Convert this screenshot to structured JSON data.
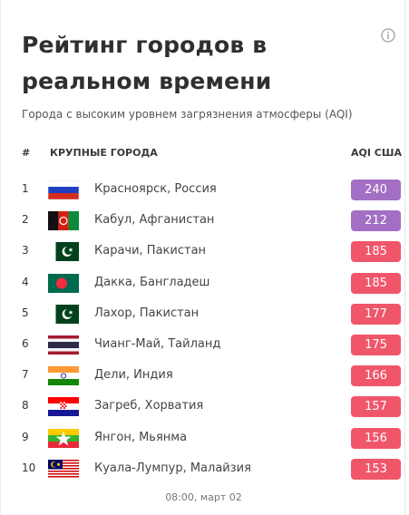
{
  "title": "Рейтинг городов в реальном времени",
  "subtitle": "Города с высоким уровнем загрязнения атмосферы (AQI)",
  "columns": {
    "num": "#",
    "city": "КРУПНЫЕ ГОРОДА",
    "aqi": "AQI США"
  },
  "rows": [
    {
      "rank": "1",
      "city": "Красноярск, Россия",
      "aqi": "240",
      "flag": "russia-flag-icon",
      "color": "#a26fc4"
    },
    {
      "rank": "2",
      "city": "Кабул, Афганистан",
      "aqi": "212",
      "flag": "afghanistan-flag-icon",
      "color": "#a26fc4"
    },
    {
      "rank": "3",
      "city": "Карачи, Пакистан",
      "aqi": "185",
      "flag": "pakistan-flag-icon",
      "color": "#f0566a"
    },
    {
      "rank": "4",
      "city": "Дакка, Бангладеш",
      "aqi": "185",
      "flag": "bangladesh-flag-icon",
      "color": "#f0566a"
    },
    {
      "rank": "5",
      "city": "Лахор, Пакистан",
      "aqi": "177",
      "flag": "pakistan-flag-icon",
      "color": "#f0566a"
    },
    {
      "rank": "6",
      "city": "Чианг-Май, Тайланд",
      "aqi": "175",
      "flag": "thailand-flag-icon",
      "color": "#f0566a"
    },
    {
      "rank": "7",
      "city": "Дели, Индия",
      "aqi": "166",
      "flag": "india-flag-icon",
      "color": "#f0566a"
    },
    {
      "rank": "8",
      "city": "Загреб, Хорватия",
      "aqi": "157",
      "flag": "croatia-flag-icon",
      "color": "#f0566a"
    },
    {
      "rank": "9",
      "city": "Янгон, Мьянма",
      "aqi": "156",
      "flag": "myanmar-flag-icon",
      "color": "#f0566a"
    },
    {
      "rank": "10",
      "city": "Куала-Лумпур, Малайзия",
      "aqi": "153",
      "flag": "malaysia-flag-icon",
      "color": "#f0566a"
    }
  ],
  "footer": "08:00, март 02"
}
